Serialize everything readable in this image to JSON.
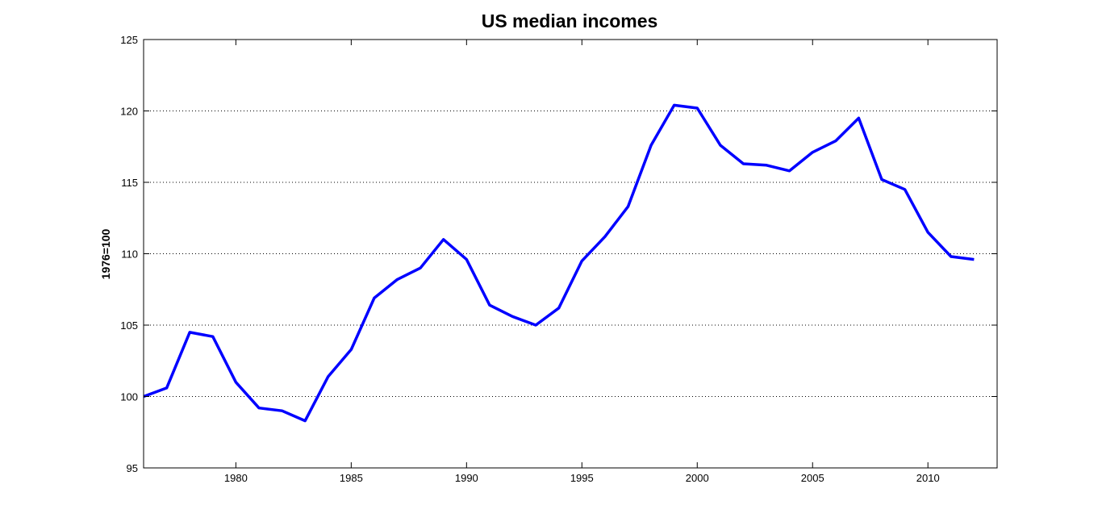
{
  "chart_data": {
    "type": "line",
    "title": "US median incomes",
    "xlabel": "",
    "ylabel": "1976=100",
    "xlim": [
      1976,
      2013
    ],
    "ylim": [
      95,
      125
    ],
    "xticks": [
      1980,
      1985,
      1990,
      1995,
      2000,
      2005,
      2010
    ],
    "yticks": [
      95,
      100,
      105,
      110,
      115,
      120,
      125
    ],
    "grid": "horizontal dotted",
    "line_color": "#0000ff",
    "series": [
      {
        "x": [
          1976,
          1977,
          1978,
          1979,
          1980,
          1981,
          1982,
          1983,
          1984,
          1985,
          1986,
          1987,
          1988,
          1989,
          1990,
          1991,
          1992,
          1993,
          1994,
          1995,
          1996,
          1997,
          1998,
          1999,
          2000,
          2001,
          2002,
          2003,
          2004,
          2005,
          2006,
          2007,
          2008,
          2009,
          2010,
          2011,
          2012
        ],
        "values": [
          100.0,
          100.6,
          104.5,
          104.2,
          101.0,
          99.2,
          99.0,
          98.3,
          101.4,
          103.3,
          106.9,
          108.2,
          109.0,
          111.0,
          109.6,
          106.4,
          105.6,
          105.0,
          106.2,
          109.5,
          111.2,
          113.3,
          117.6,
          120.4,
          120.2,
          117.6,
          116.3,
          116.2,
          115.8,
          117.1,
          117.9,
          119.5,
          115.2,
          114.5,
          111.5,
          109.8,
          109.6
        ]
      }
    ]
  }
}
